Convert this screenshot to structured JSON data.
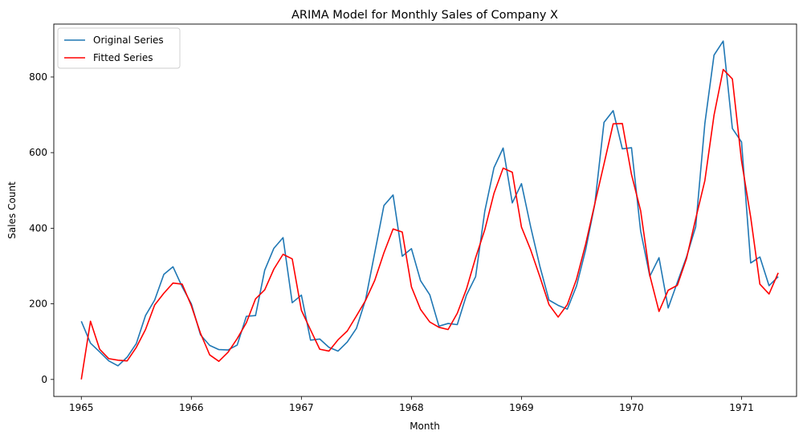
{
  "chart_data": {
    "type": "line",
    "title": "ARIMA Model for Monthly Sales of Company X",
    "xlabel": "Month",
    "ylabel": "Sales Count",
    "x_start": "1965-01",
    "x_ticks": [
      "1965",
      "1966",
      "1967",
      "1968",
      "1969",
      "1970",
      "1971"
    ],
    "y_ticks": [
      0,
      200,
      400,
      600,
      800
    ],
    "xlim": [
      "1964-10",
      "1971-07"
    ],
    "ylim": [
      -45,
      940
    ],
    "legend_position": "upper-left",
    "series": [
      {
        "name": "Original Series",
        "color": "#1f77b4",
        "values": [
          154,
          96,
          73,
          49,
          36,
          59,
          95,
          169,
          210,
          278,
          298,
          245,
          200,
          118,
          90,
          79,
          78,
          91,
          167,
          169,
          289,
          347,
          375,
          203,
          223,
          104,
          107,
          85,
          75,
          99,
          135,
          211,
          335,
          460,
          488,
          326,
          346,
          261,
          224,
          141,
          148,
          145,
          223,
          272,
          445,
          560,
          612,
          467,
          518,
          404,
          300,
          210,
          196,
          186,
          247,
          343,
          464,
          680,
          711,
          610,
          613,
          392,
          273,
          322,
          189,
          257,
          324,
          404,
          677,
          858,
          895,
          664,
          628,
          308,
          324,
          248,
          272
        ]
      },
      {
        "name": "Fitted Series",
        "color": "#ff0000",
        "values": [
          0,
          154,
          80,
          55,
          51,
          49,
          85,
          132,
          197,
          228,
          255,
          252,
          195,
          122,
          65,
          48,
          72,
          108,
          150,
          213,
          237,
          292,
          331,
          319,
          183,
          131,
          80,
          75,
          105,
          128,
          168,
          209,
          262,
          335,
          398,
          390,
          245,
          185,
          152,
          138,
          132,
          175,
          239,
          322,
          396,
          492,
          559,
          548,
          403,
          343,
          272,
          198,
          165,
          198,
          265,
          358,
          465,
          570,
          676,
          677,
          542,
          446,
          275,
          180,
          236,
          249,
          320,
          425,
          526,
          699,
          820,
          795,
          578,
          429,
          252,
          226,
          282
        ]
      }
    ]
  }
}
